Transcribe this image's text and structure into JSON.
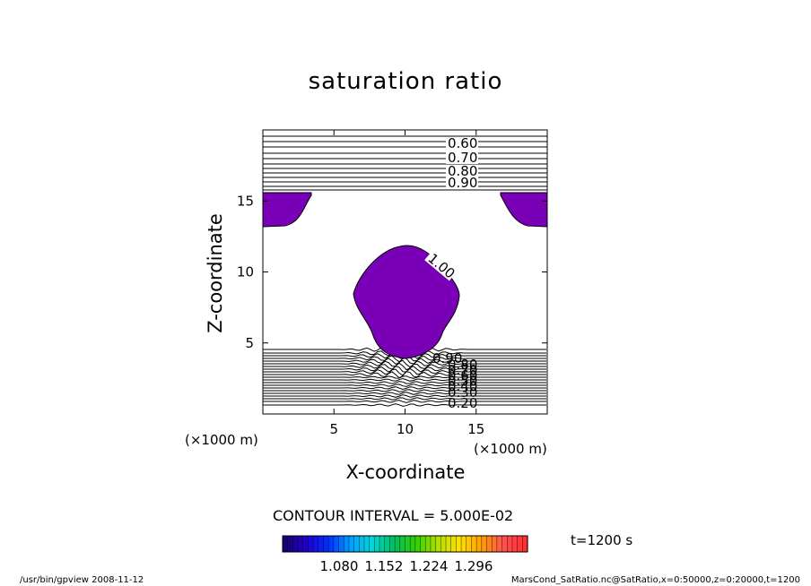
{
  "title": "saturation ratio",
  "contour_interval_text": "CONTOUR INTERVAL = 5.000E-02",
  "time_label": "t=1200 s",
  "footer_program": "/usr/bin/gpview   2008-11-12",
  "footer_source": "MarsCond_SatRatio.nc@SatRatio,x=0:50000,z=0:20000,t=1200",
  "x_unit": "(×1000 m)",
  "colors": {
    "fill": "#7a00b8",
    "line": "#000000"
  },
  "colorbar": {
    "labels": [
      "1.080",
      "1.152",
      "1.224",
      "1.296"
    ],
    "stops": [
      "#1a0070",
      "#2000d0",
      "#0030ff",
      "#00a0ff",
      "#00d8d8",
      "#00c060",
      "#30d000",
      "#b0e000",
      "#ffe000",
      "#ffa000",
      "#ff5050",
      "#ff3030"
    ]
  },
  "chart_data": {
    "type": "contour",
    "title": "saturation ratio",
    "xlabel": "X-coordinate",
    "ylabel": "Z-coordinate",
    "x_unit": "(×1000 m)",
    "xlim": [
      0,
      20
    ],
    "ylim": [
      0,
      20
    ],
    "xticks": [
      5,
      10,
      15
    ],
    "yticks": [
      5,
      10,
      15
    ],
    "contour_interval": 0.05,
    "upper_level_labels": [
      "0.60",
      "0.70",
      "0.80",
      "0.90"
    ],
    "lower_level_labels": [
      "0.90",
      "0.80",
      "0.70",
      "0.60",
      "0.50",
      "0.40",
      "0.30",
      "0.20"
    ],
    "supersaturated_label": "1.00",
    "colorbar_labels": [
      1.08,
      1.152,
      1.224,
      1.296
    ]
  }
}
